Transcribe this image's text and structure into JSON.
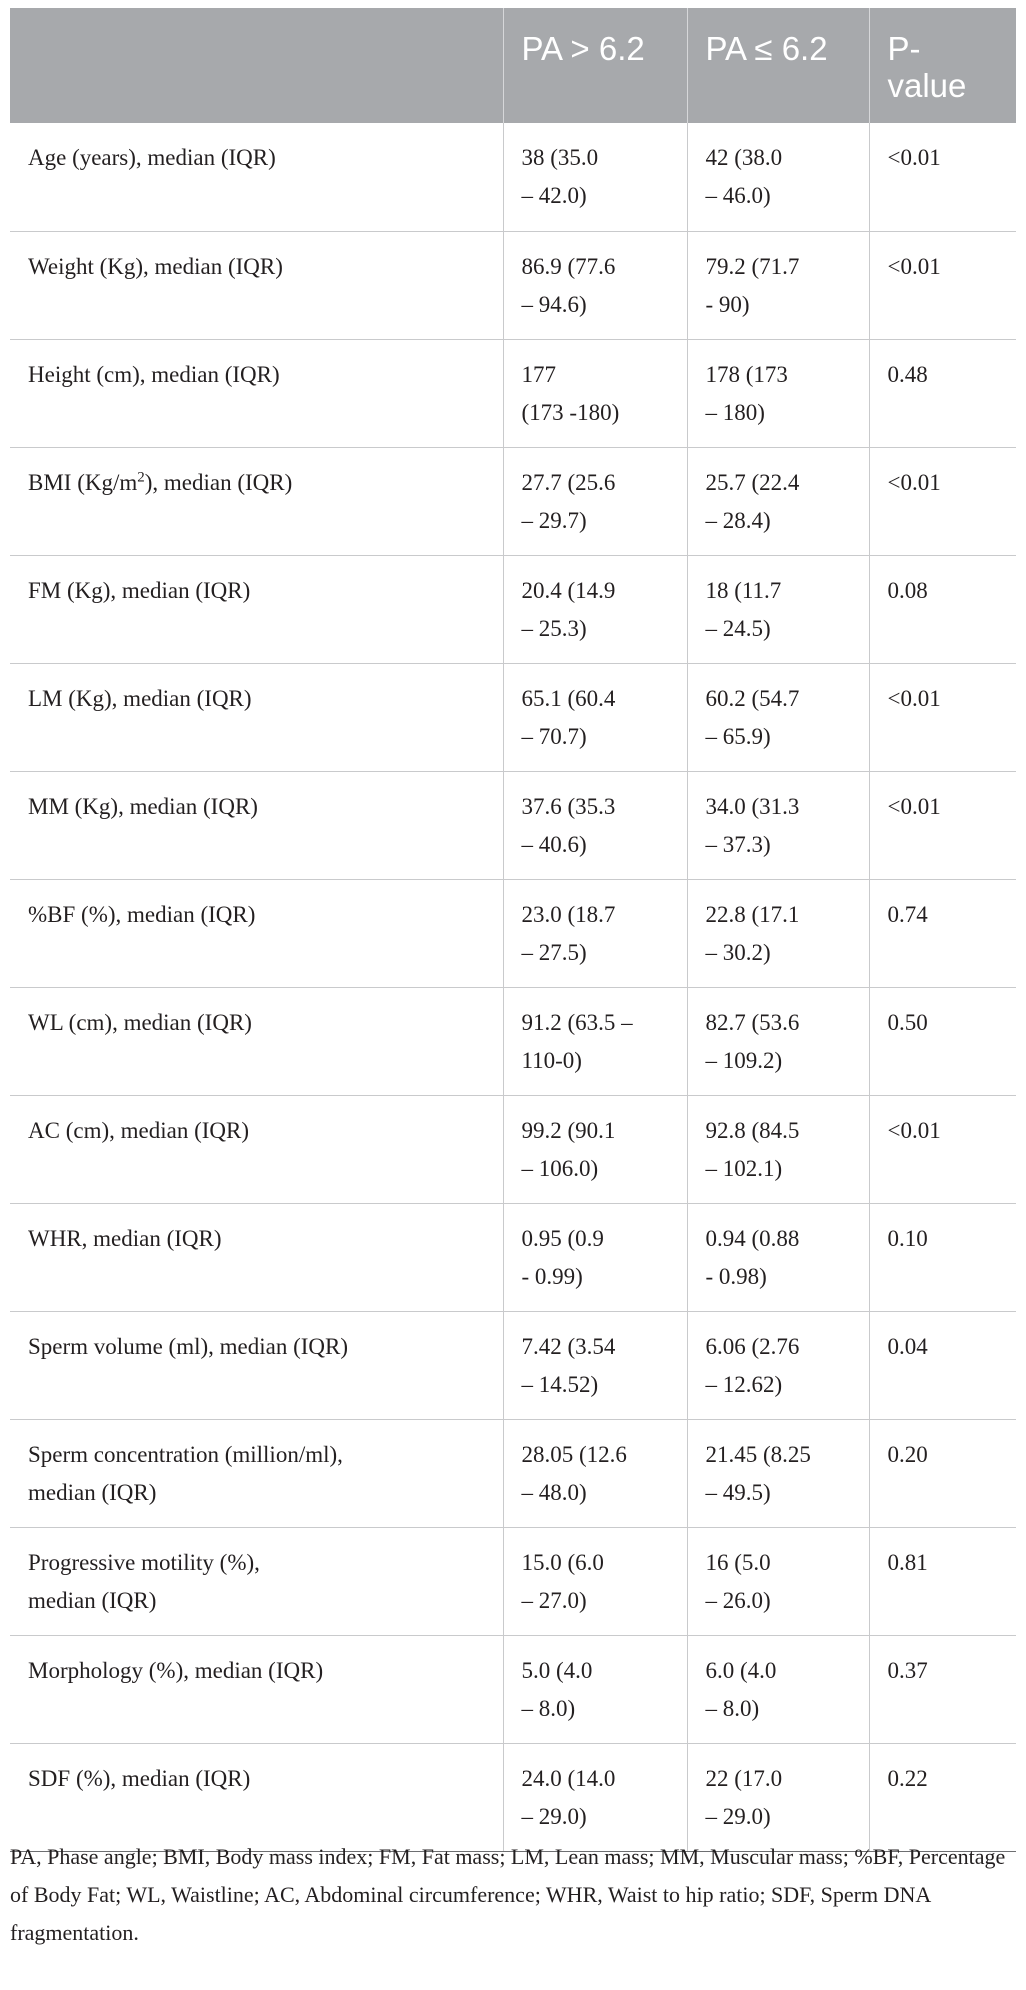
{
  "table": {
    "headers": [
      "",
      "PA > 6.2",
      "PA ≤ 6.2",
      "P-\nvalue"
    ],
    "rows": [
      {
        "label": "Age (years), median (IQR)",
        "pa_high": "38 (35.0\n– 42.0)",
        "pa_low": "42 (38.0\n– 46.0)",
        "p": "<0.01"
      },
      {
        "label": "Weight (Kg), median (IQR)",
        "pa_high": "86.9 (77.6\n– 94.6)",
        "pa_low": "79.2 (71.7\n- 90)",
        "p": "<0.01"
      },
      {
        "label": "Height (cm), median (IQR)",
        "pa_high": "177\n(173 -180)",
        "pa_low": "178 (173\n– 180)",
        "p": "0.48"
      },
      {
        "label_pre": "BMI (Kg/m",
        "label_sup": "2",
        "label_post": "), median (IQR)",
        "pa_high": "27.7 (25.6\n– 29.7)",
        "pa_low": "25.7 (22.4\n– 28.4)",
        "p": "<0.01"
      },
      {
        "label": "FM (Kg), median (IQR)",
        "pa_high": "20.4 (14.9\n– 25.3)",
        "pa_low": "18 (11.7\n– 24.5)",
        "p": "0.08"
      },
      {
        "label": "LM (Kg), median (IQR)",
        "pa_high": "65.1 (60.4\n– 70.7)",
        "pa_low": "60.2 (54.7\n– 65.9)",
        "p": "<0.01"
      },
      {
        "label": "MM (Kg), median (IQR)",
        "pa_high": "37.6 (35.3\n– 40.6)",
        "pa_low": "34.0 (31.3\n– 37.3)",
        "p": "<0.01"
      },
      {
        "label": "%BF (%), median (IQR)",
        "pa_high": "23.0 (18.7\n– 27.5)",
        "pa_low": "22.8 (17.1\n– 30.2)",
        "p": "0.74"
      },
      {
        "label": "WL (cm), median (IQR)",
        "pa_high": "91.2 (63.5 –\n110-0)",
        "pa_low": "82.7 (53.6\n– 109.2)",
        "p": "0.50"
      },
      {
        "label": "AC (cm), median (IQR)",
        "pa_high": "99.2 (90.1\n– 106.0)",
        "pa_low": "92.8 (84.5\n– 102.1)",
        "p": "<0.01"
      },
      {
        "label": "WHR, median (IQR)",
        "pa_high": "0.95 (0.9\n- 0.99)",
        "pa_low": "0.94 (0.88\n- 0.98)",
        "p": "0.10"
      },
      {
        "label": "Sperm volume (ml), median (IQR)",
        "pa_high": "7.42 (3.54\n– 14.52)",
        "pa_low": "6.06 (2.76\n– 12.62)",
        "p": "0.04"
      },
      {
        "label": "Sperm concentration (million/ml),\nmedian (IQR)",
        "pa_high": "28.05 (12.6\n– 48.0)",
        "pa_low": "21.45 (8.25\n– 49.5)",
        "p": "0.20"
      },
      {
        "label": "Progressive motility (%),\nmedian (IQR)",
        "pa_high": "15.0 (6.0\n– 27.0)",
        "pa_low": "16 (5.0\n– 26.0)",
        "p": "0.81"
      },
      {
        "label": "Morphology (%), median (IQR)",
        "pa_high": "5.0 (4.0\n– 8.0)",
        "pa_low": "6.0 (4.0\n– 8.0)",
        "p": "0.37"
      },
      {
        "label": "SDF (%), median (IQR)",
        "pa_high": "24.0 (14.0\n– 29.0)",
        "pa_low": "22 (17.0\n– 29.0)",
        "p": "0.22"
      }
    ]
  },
  "footnote": "PA, Phase angle; BMI, Body mass index; FM, Fat mass; LM, Lean mass; MM, Muscular mass; %BF, Percentage of Body Fat; WL, Waistline; AC, Abdominal circumference; WHR, Waist to hip ratio; SDF, Sperm DNA fragmentation."
}
